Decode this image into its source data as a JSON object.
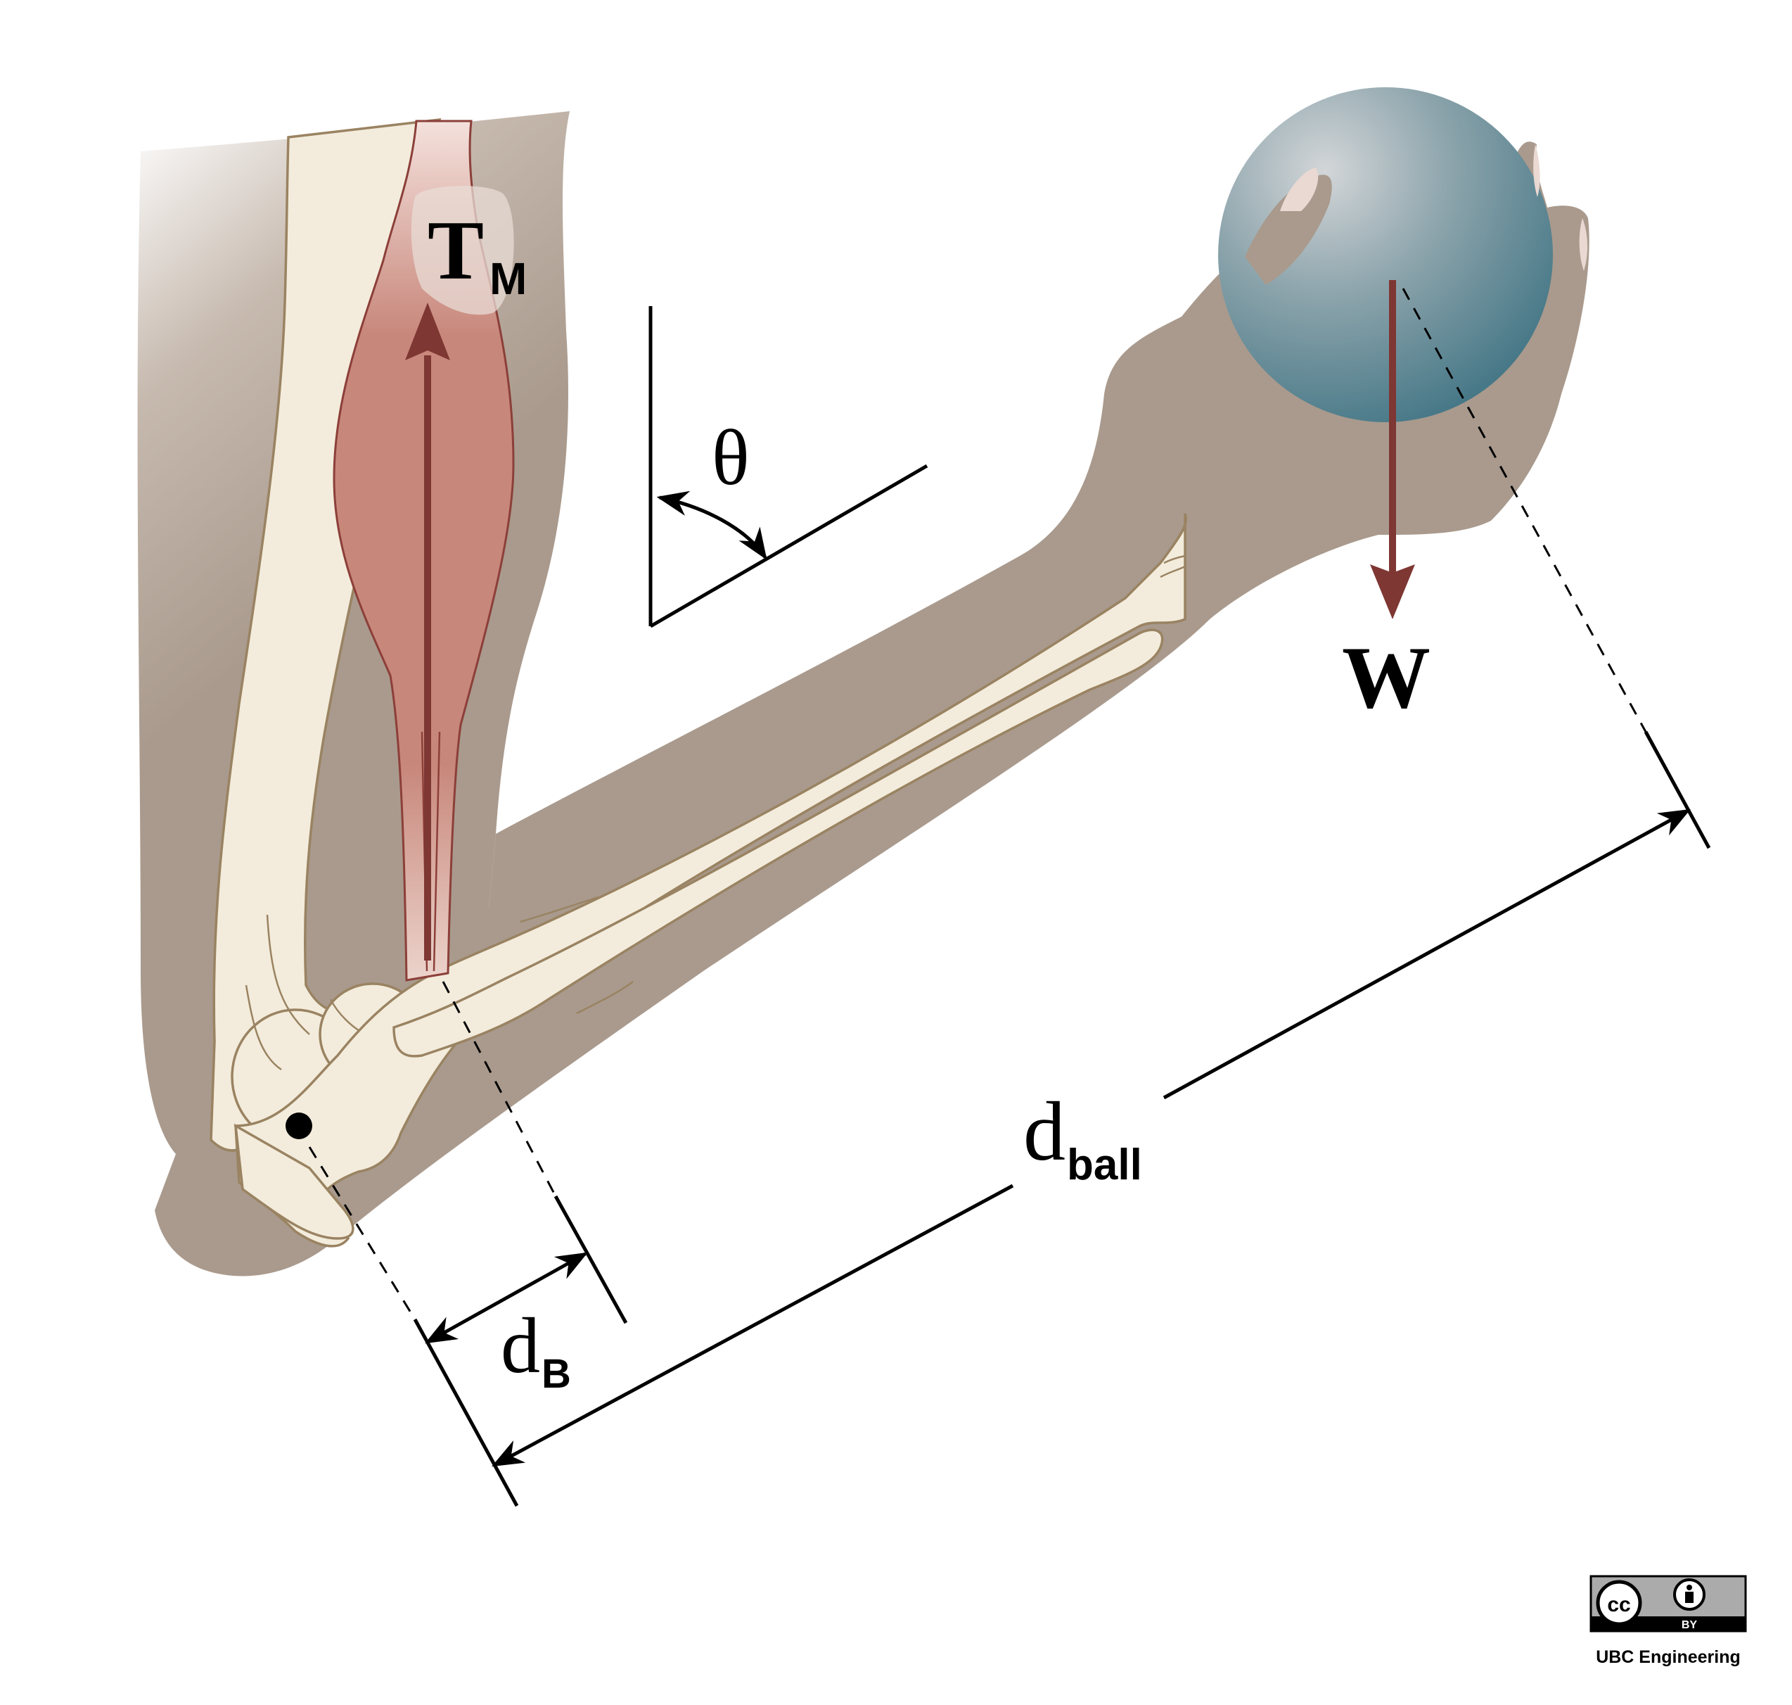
{
  "labels": {
    "muscle_force": {
      "main": "T",
      "sub": "M"
    },
    "weight": "W",
    "angle": "θ",
    "muscle_distance": {
      "main": "d",
      "sub": "B"
    },
    "ball_distance": {
      "main": "d",
      "sub": "ball"
    }
  },
  "license": {
    "badge_cc": "cc",
    "badge_by": "BY",
    "credit": "UBC Engineering"
  },
  "colors": {
    "skin": "#a99a8d",
    "bone": "#f3ecdc",
    "muscle": "#c8877b",
    "force_arrow": "#7e3733",
    "ball": "#6f929c"
  }
}
